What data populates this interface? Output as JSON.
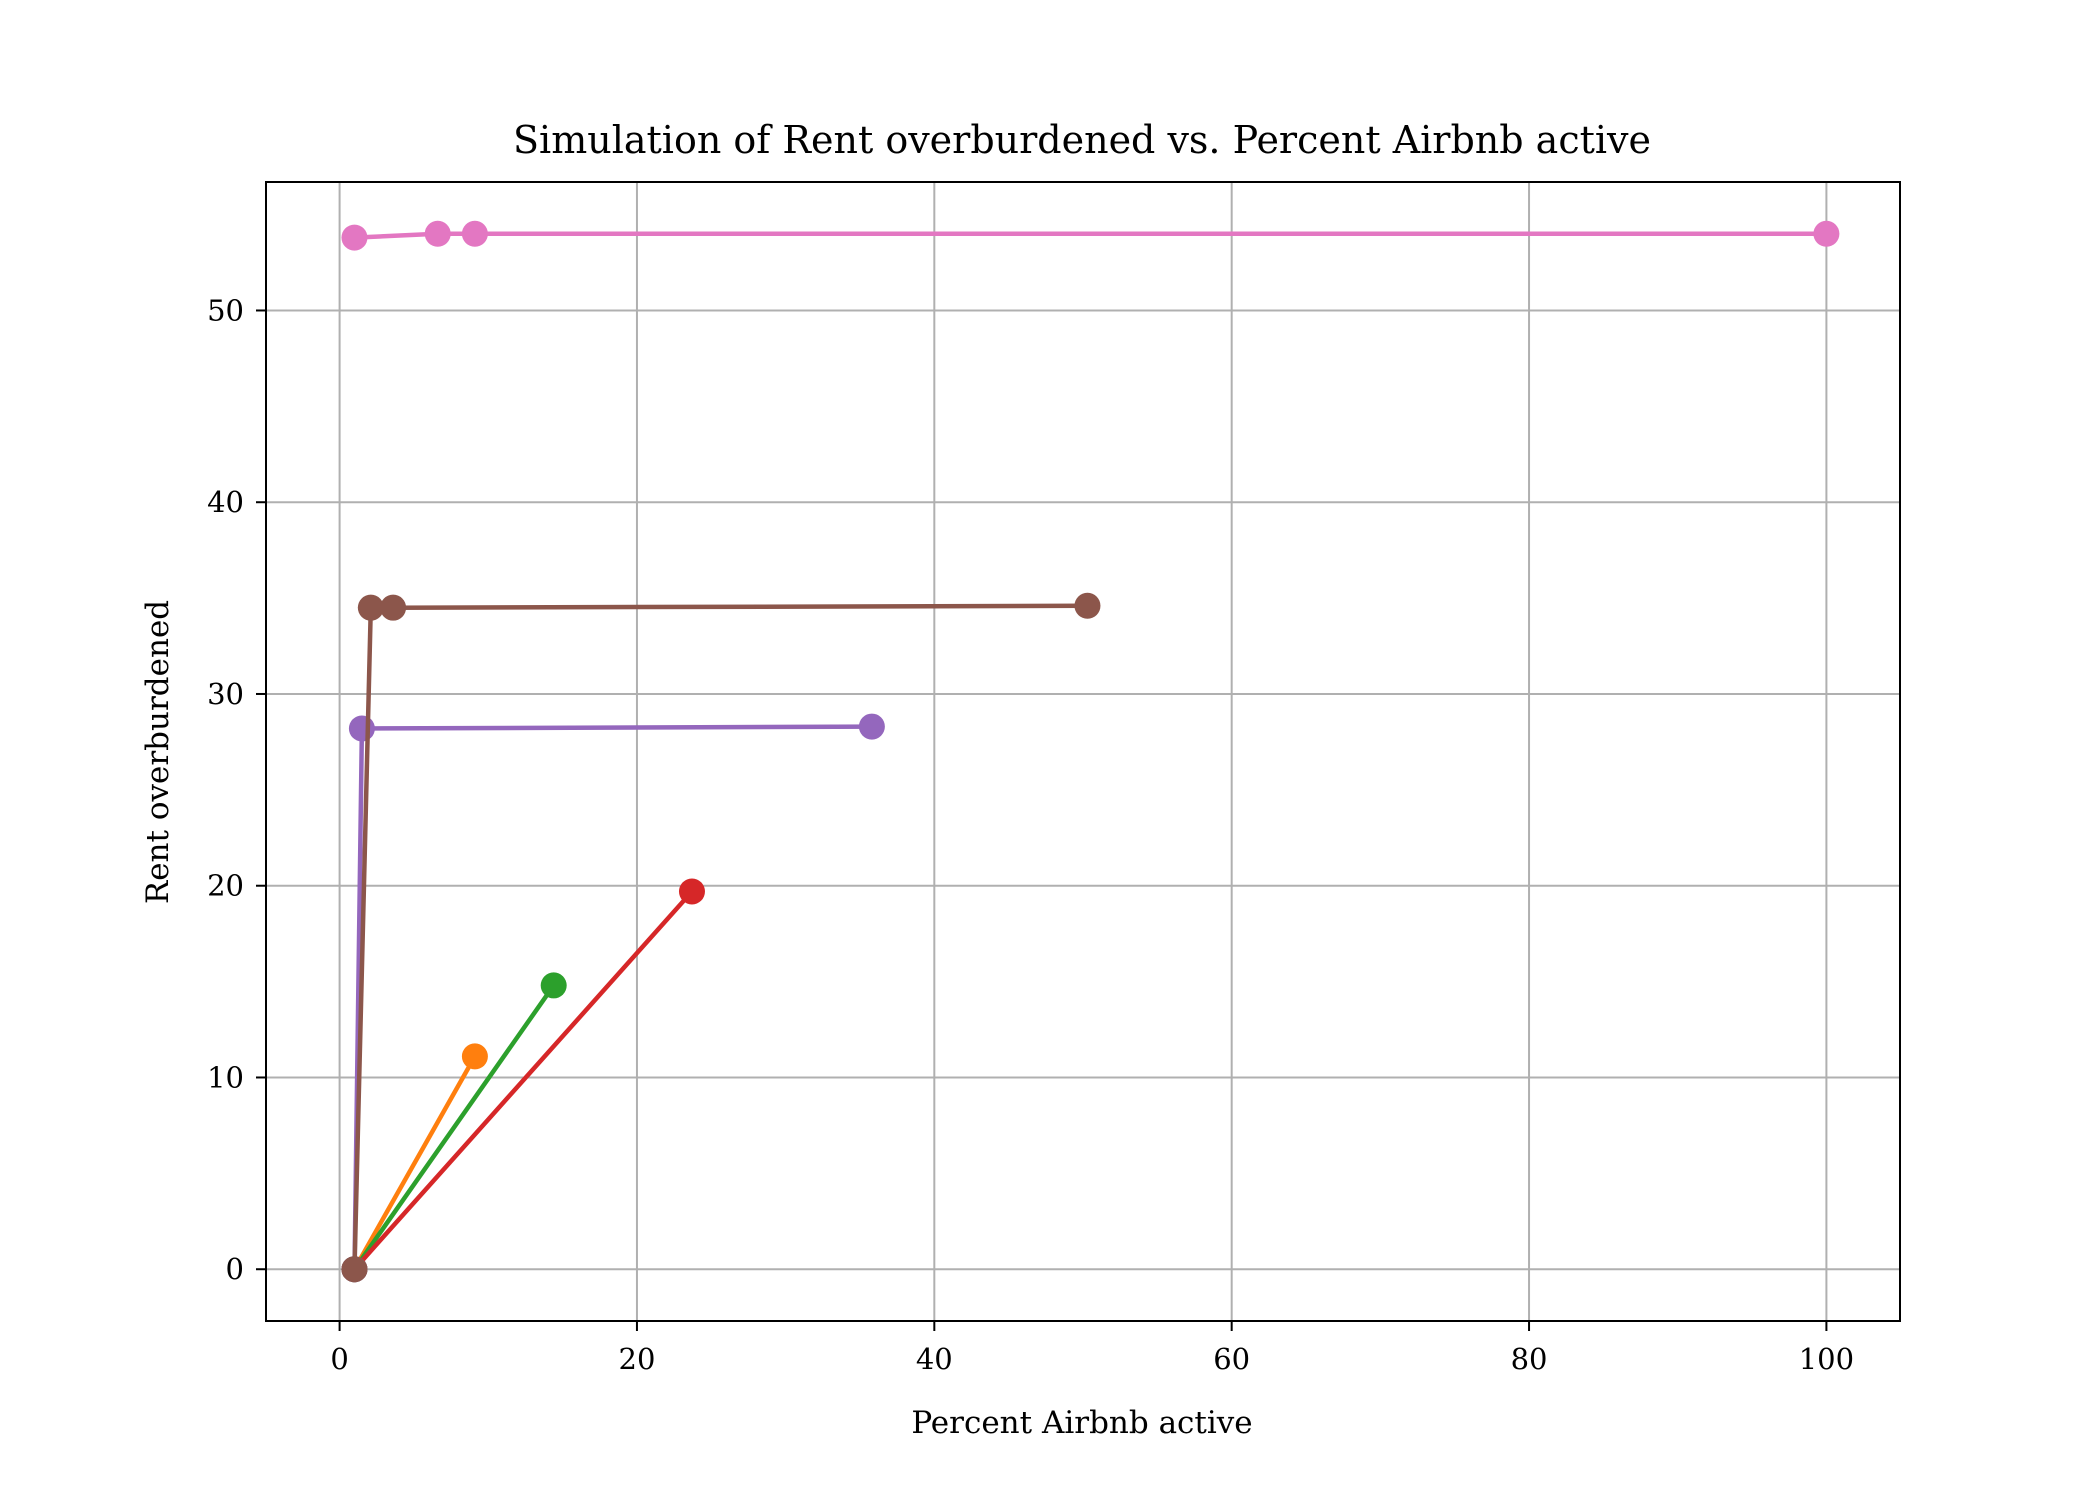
{
  "chart_data": {
    "type": "line",
    "title": "Simulation of Rent overburdened vs. Percent Airbnb active",
    "xlabel": "Percent Airbnb active",
    "ylabel": "Rent overburdened",
    "xlim": [
      -4.95,
      104.95
    ],
    "ylim": [
      -2.7,
      56.7
    ],
    "xticks": [
      0,
      20,
      40,
      60,
      80,
      100
    ],
    "yticks": [
      0,
      10,
      20,
      30,
      40,
      50
    ],
    "grid": true,
    "legend": "none",
    "series": [
      {
        "color": "#1f77b4",
        "points": [
          [
            1.0,
            0.0
          ],
          [
            1.0,
            0.0
          ]
        ]
      },
      {
        "color": "#ff7f0e",
        "points": [
          [
            1.0,
            0.0
          ],
          [
            9.1,
            11.1
          ]
        ]
      },
      {
        "color": "#2ca02c",
        "points": [
          [
            1.0,
            0.0
          ],
          [
            14.4,
            14.8
          ]
        ]
      },
      {
        "color": "#d62728",
        "points": [
          [
            1.0,
            0.0
          ],
          [
            23.7,
            19.7
          ]
        ]
      },
      {
        "color": "#9467bd",
        "points": [
          [
            1.0,
            0.0
          ],
          [
            1.5,
            28.2
          ],
          [
            35.8,
            28.3
          ]
        ]
      },
      {
        "color": "#8c564b",
        "points": [
          [
            1.0,
            0.0
          ],
          [
            2.1,
            34.5
          ],
          [
            3.6,
            34.5
          ],
          [
            50.3,
            34.6
          ]
        ]
      },
      {
        "color": "#e377c2",
        "points": [
          [
            1.0,
            53.8
          ],
          [
            6.6,
            54.0
          ],
          [
            9.1,
            54.0
          ],
          [
            100.0,
            54.0
          ]
        ]
      }
    ]
  }
}
